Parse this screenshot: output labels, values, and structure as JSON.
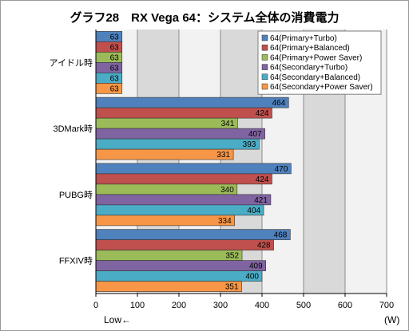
{
  "chart_data": {
    "type": "bar",
    "orientation": "horizontal",
    "title": "グラフ28　RX Vega 64：システム全体の消費電力",
    "categories": [
      "アイドル時",
      "3DMark時",
      "PUBG時",
      "FFXIV時"
    ],
    "series": [
      {
        "name": "64(Primary+Turbo)",
        "color": "#4f81bd",
        "values": [
          63,
          464,
          470,
          468
        ]
      },
      {
        "name": "64(Primary+Balanced)",
        "color": "#c0504d",
        "values": [
          63,
          424,
          424,
          428
        ]
      },
      {
        "name": "64(Primary+Power Saver)",
        "color": "#9bbb59",
        "values": [
          63,
          341,
          340,
          352
        ]
      },
      {
        "name": "64(Secondary+Turbo)",
        "color": "#8064a2",
        "values": [
          63,
          407,
          421,
          409
        ]
      },
      {
        "name": "64(Secondary+Balanced)",
        "color": "#4bacc6",
        "values": [
          63,
          393,
          404,
          400
        ]
      },
      {
        "name": "64(Secondary+Power Saver)",
        "color": "#f79646",
        "values": [
          63,
          331,
          334,
          351
        ]
      }
    ],
    "xlim": [
      0,
      700
    ],
    "xticks": [
      0,
      100,
      200,
      300,
      400,
      500,
      600,
      700
    ],
    "grid": true,
    "legend": "top-right",
    "low_label": "Low",
    "unit_label": "(W)"
  }
}
